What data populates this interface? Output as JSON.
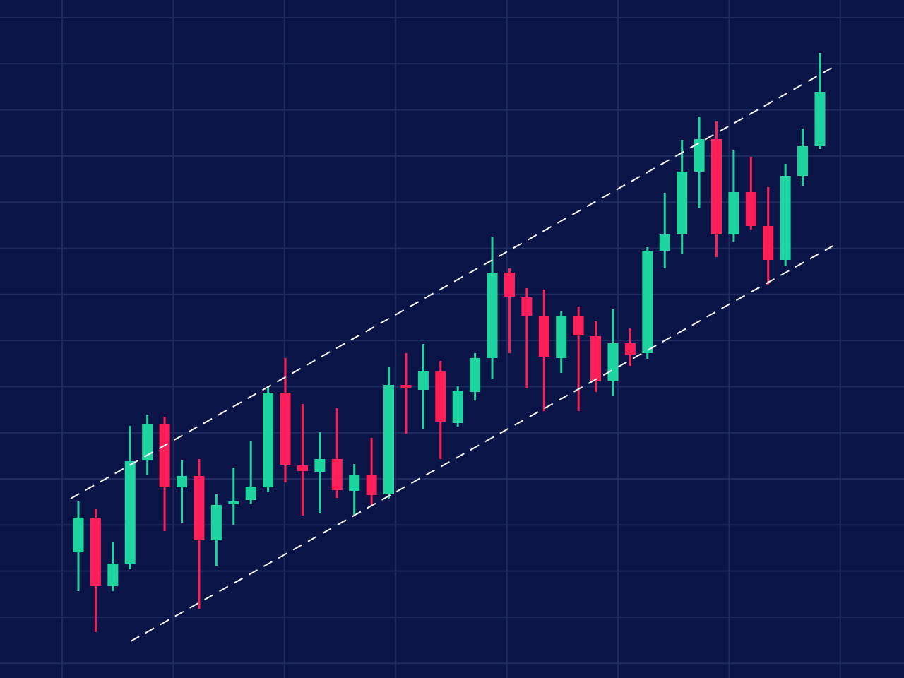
{
  "chart_data": {
    "type": "candlestick",
    "up_color": "#1ed49f",
    "down_color": "#ff1f58",
    "background": "#0b1446",
    "grid": true,
    "ylim": [
      0,
      960
    ],
    "open": [
      178,
      227,
      130,
      162,
      308,
      360,
      270,
      286,
      195,
      246,
      252,
      270,
      404,
      301,
      292,
      310,
      265,
      288,
      260,
      415,
      408,
      434,
      361,
      405,
      453,
      574,
      539,
      512,
      453,
      512,
      484,
      420,
      474,
      460,
      605,
      628,
      717,
      763,
      628,
      688,
      640,
      592,
      711,
      753
    ],
    "high": [
      250,
      240,
      192,
      357,
      373,
      370,
      308,
      310,
      260,
      298,
      336,
      412,
      453,
      388,
      348,
      382,
      303,
      340,
      440,
      460,
      473,
      449,
      413,
      460,
      625,
      580,
      552,
      550,
      519,
      526,
      505,
      522,
      495,
      610,
      687,
      762,
      795,
      788,
      747,
      738,
      695,
      728,
      778,
      885
    ],
    "low": [
      123,
      65,
      123,
      154,
      288,
      208,
      220,
      98,
      158,
      217,
      246,
      263,
      277,
      230,
      233,
      255,
      230,
      243,
      254,
      346,
      352,
      310,
      356,
      393,
      423,
      460,
      410,
      378,
      432,
      378,
      405,
      400,
      442,
      452,
      580,
      600,
      665,
      596,
      618,
      635,
      557,
      583,
      697,
      749
    ],
    "close": [
      227,
      130,
      162,
      307,
      360,
      270,
      286,
      195,
      245,
      250,
      271,
      404,
      302,
      293,
      310,
      266,
      288,
      259,
      415,
      410,
      434,
      363,
      406,
      453,
      574,
      540,
      513,
      455,
      512,
      485,
      420,
      474,
      458,
      605,
      628,
      717,
      763,
      628,
      688,
      640,
      592,
      711,
      753,
      830
    ]
  }
}
